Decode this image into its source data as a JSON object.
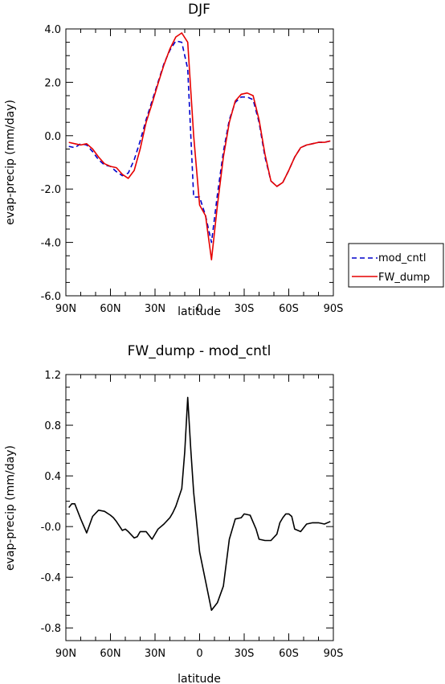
{
  "chart_data": [
    {
      "type": "line",
      "title": "DJF",
      "xlabel": "latitude",
      "ylabel": "evap-precip (mm/day)",
      "xlim": [
        90,
        -90
      ],
      "ylim": [
        -6.0,
        4.0
      ],
      "xticks": [
        90,
        60,
        30,
        0,
        -30,
        -60,
        -90
      ],
      "xtick_labels": [
        "90N",
        "60N",
        "30N",
        "0",
        "30S",
        "60S",
        "90S"
      ],
      "yticks": [
        -6.0,
        -4.0,
        -2.0,
        0.0,
        2.0,
        4.0
      ],
      "ytick_labels": [
        "-6.0",
        "-4.0",
        "-2.0",
        "0.0",
        "2.0",
        "4.0"
      ],
      "legend_position": "right",
      "series": [
        {
          "name": "mod_cntl",
          "color": "#0000cc",
          "dash": "dashed",
          "x": [
            88,
            84,
            80,
            76,
            72,
            68,
            64,
            60,
            56,
            52,
            48,
            44,
            40,
            36,
            32,
            28,
            24,
            20,
            16,
            12,
            8,
            4,
            0,
            -4,
            -8,
            -12,
            -16,
            -20,
            -24,
            -28,
            -32,
            -36,
            -40,
            -44,
            -48,
            -52,
            -56,
            -60,
            -64,
            -68,
            -72,
            -76,
            -80,
            -84,
            -88
          ],
          "y": [
            -0.4,
            -0.45,
            -0.3,
            -0.35,
            -0.6,
            -0.9,
            -1.1,
            -1.15,
            -1.35,
            -1.5,
            -1.4,
            -0.9,
            -0.2,
            0.6,
            1.3,
            2.0,
            2.7,
            3.2,
            3.55,
            3.5,
            2.5,
            -2.3,
            -2.3,
            -3.0,
            -4.0,
            -2.2,
            -0.6,
            0.6,
            1.25,
            1.45,
            1.45,
            1.35,
            0.5,
            -0.8,
            -1.7,
            -1.9,
            -1.75,
            -1.3,
            -0.8,
            -0.45,
            -0.35,
            -0.3,
            -0.25,
            -0.25,
            -0.2
          ]
        },
        {
          "name": "FW_dump",
          "color": "#e60000",
          "dash": "solid",
          "x": [
            88,
            84,
            80,
            76,
            72,
            68,
            64,
            60,
            56,
            52,
            48,
            44,
            40,
            36,
            32,
            28,
            24,
            20,
            16,
            12,
            8,
            4,
            0,
            -4,
            -8,
            -12,
            -16,
            -20,
            -24,
            -28,
            -32,
            -36,
            -40,
            -44,
            -48,
            -52,
            -56,
            -60,
            -64,
            -68,
            -72,
            -76,
            -80,
            -84,
            -88
          ],
          "y": [
            -0.25,
            -0.3,
            -0.35,
            -0.3,
            -0.5,
            -0.8,
            -1.05,
            -1.15,
            -1.2,
            -1.45,
            -1.6,
            -1.3,
            -0.5,
            0.5,
            1.2,
            1.95,
            2.65,
            3.25,
            3.7,
            3.85,
            3.5,
            0.0,
            -2.6,
            -3.0,
            -4.65,
            -2.6,
            -0.8,
            0.5,
            1.3,
            1.55,
            1.6,
            1.5,
            0.6,
            -0.7,
            -1.7,
            -1.9,
            -1.75,
            -1.3,
            -0.8,
            -0.45,
            -0.35,
            -0.3,
            -0.25,
            -0.25,
            -0.2
          ]
        }
      ]
    },
    {
      "type": "line",
      "title": "FW_dump - mod_cntl",
      "xlabel": "latitude",
      "ylabel": "evap-precip (mm/day)",
      "xlim": [
        90,
        -90
      ],
      "ylim": [
        -0.9,
        1.2
      ],
      "xticks": [
        90,
        60,
        30,
        0,
        -30,
        -60,
        -90
      ],
      "xtick_labels": [
        "90N",
        "60N",
        "30N",
        "0",
        "30S",
        "60S",
        "90S"
      ],
      "yticks": [
        -0.8,
        -0.4,
        0.0,
        0.4,
        0.8,
        1.2
      ],
      "ytick_labels": [
        "-0.8",
        "-0.4",
        "-0.0",
        "0.4",
        "0.8",
        "1.2"
      ],
      "series": [
        {
          "color": "#000000",
          "dash": "solid",
          "x": [
            88,
            86,
            84,
            80,
            76,
            72,
            68,
            64,
            60,
            58,
            56,
            52,
            50,
            48,
            44,
            42,
            40,
            36,
            32,
            28,
            24,
            20,
            18,
            16,
            12,
            10,
            8,
            6,
            4,
            0,
            -4,
            -8,
            -12,
            -16,
            -20,
            -24,
            -28,
            -30,
            -34,
            -38,
            -40,
            -44,
            -48,
            -52,
            -54,
            -56,
            -58,
            -60,
            -62,
            -64,
            -68,
            -72,
            -76,
            -80,
            -84,
            -88
          ],
          "y": [
            0.15,
            0.18,
            0.18,
            0.06,
            -0.05,
            0.08,
            0.13,
            0.12,
            0.09,
            0.07,
            0.04,
            -0.03,
            -0.02,
            -0.04,
            -0.09,
            -0.08,
            -0.04,
            -0.04,
            -0.1,
            -0.02,
            0.02,
            0.07,
            0.11,
            0.16,
            0.3,
            0.59,
            1.02,
            0.62,
            0.27,
            -0.2,
            -0.43,
            -0.66,
            -0.6,
            -0.47,
            -0.1,
            0.06,
            0.07,
            0.1,
            0.09,
            -0.02,
            -0.1,
            -0.11,
            -0.11,
            -0.06,
            0.03,
            0.07,
            0.1,
            0.1,
            0.08,
            -0.02,
            -0.04,
            0.02,
            0.03,
            0.03,
            0.02,
            0.04
          ]
        }
      ]
    }
  ]
}
